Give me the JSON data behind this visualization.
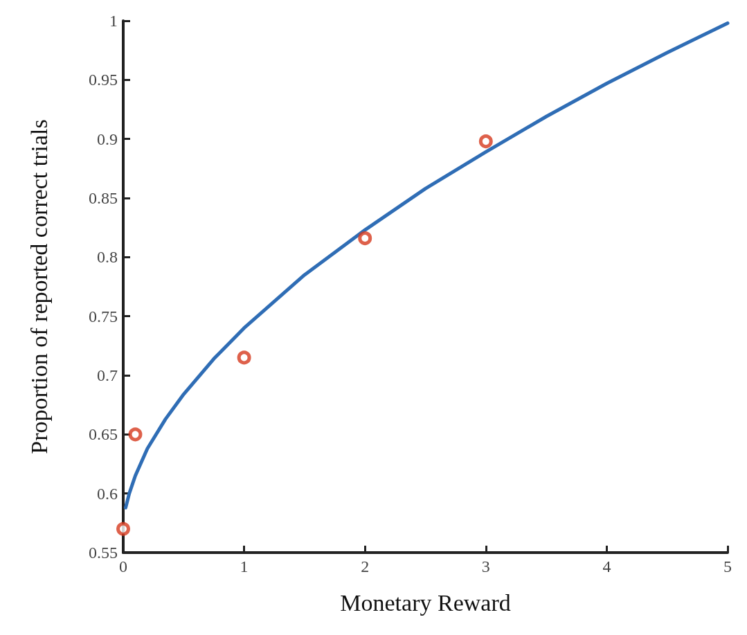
{
  "chart_data": {
    "type": "scatter",
    "xlabel": "Monetary Reward",
    "ylabel": "Proportion of reported correct trials",
    "xlim": [
      0,
      5
    ],
    "xticks": [
      0,
      1,
      2,
      3,
      4,
      5
    ],
    "ylim": [
      0.55,
      1
    ],
    "yticks": [
      0.55,
      0.6,
      0.65,
      0.7,
      0.75,
      0.8,
      0.85,
      0.9,
      0.95,
      1
    ],
    "grid": false,
    "series": [
      {
        "type": "line",
        "color": "#2f6db5",
        "line_style": "solid",
        "marker": "none",
        "x": [
          0.02,
          0.05,
          0.1,
          0.2,
          0.35,
          0.5,
          0.75,
          1,
          1.5,
          2,
          2.5,
          3,
          3.5,
          4,
          4.5,
          5
        ],
        "values": [
          0.588,
          0.6,
          0.615,
          0.638,
          0.663,
          0.684,
          0.714,
          0.74,
          0.785,
          0.823,
          0.858,
          0.889,
          0.919,
          0.947,
          0.973,
          0.998
        ]
      },
      {
        "color": "#d63a1e",
        "marker": "circle",
        "x": [
          0,
          0.1,
          1,
          2,
          3
        ],
        "values": [
          0.57,
          0.65,
          0.715,
          0.816,
          0.898
        ]
      }
    ]
  }
}
